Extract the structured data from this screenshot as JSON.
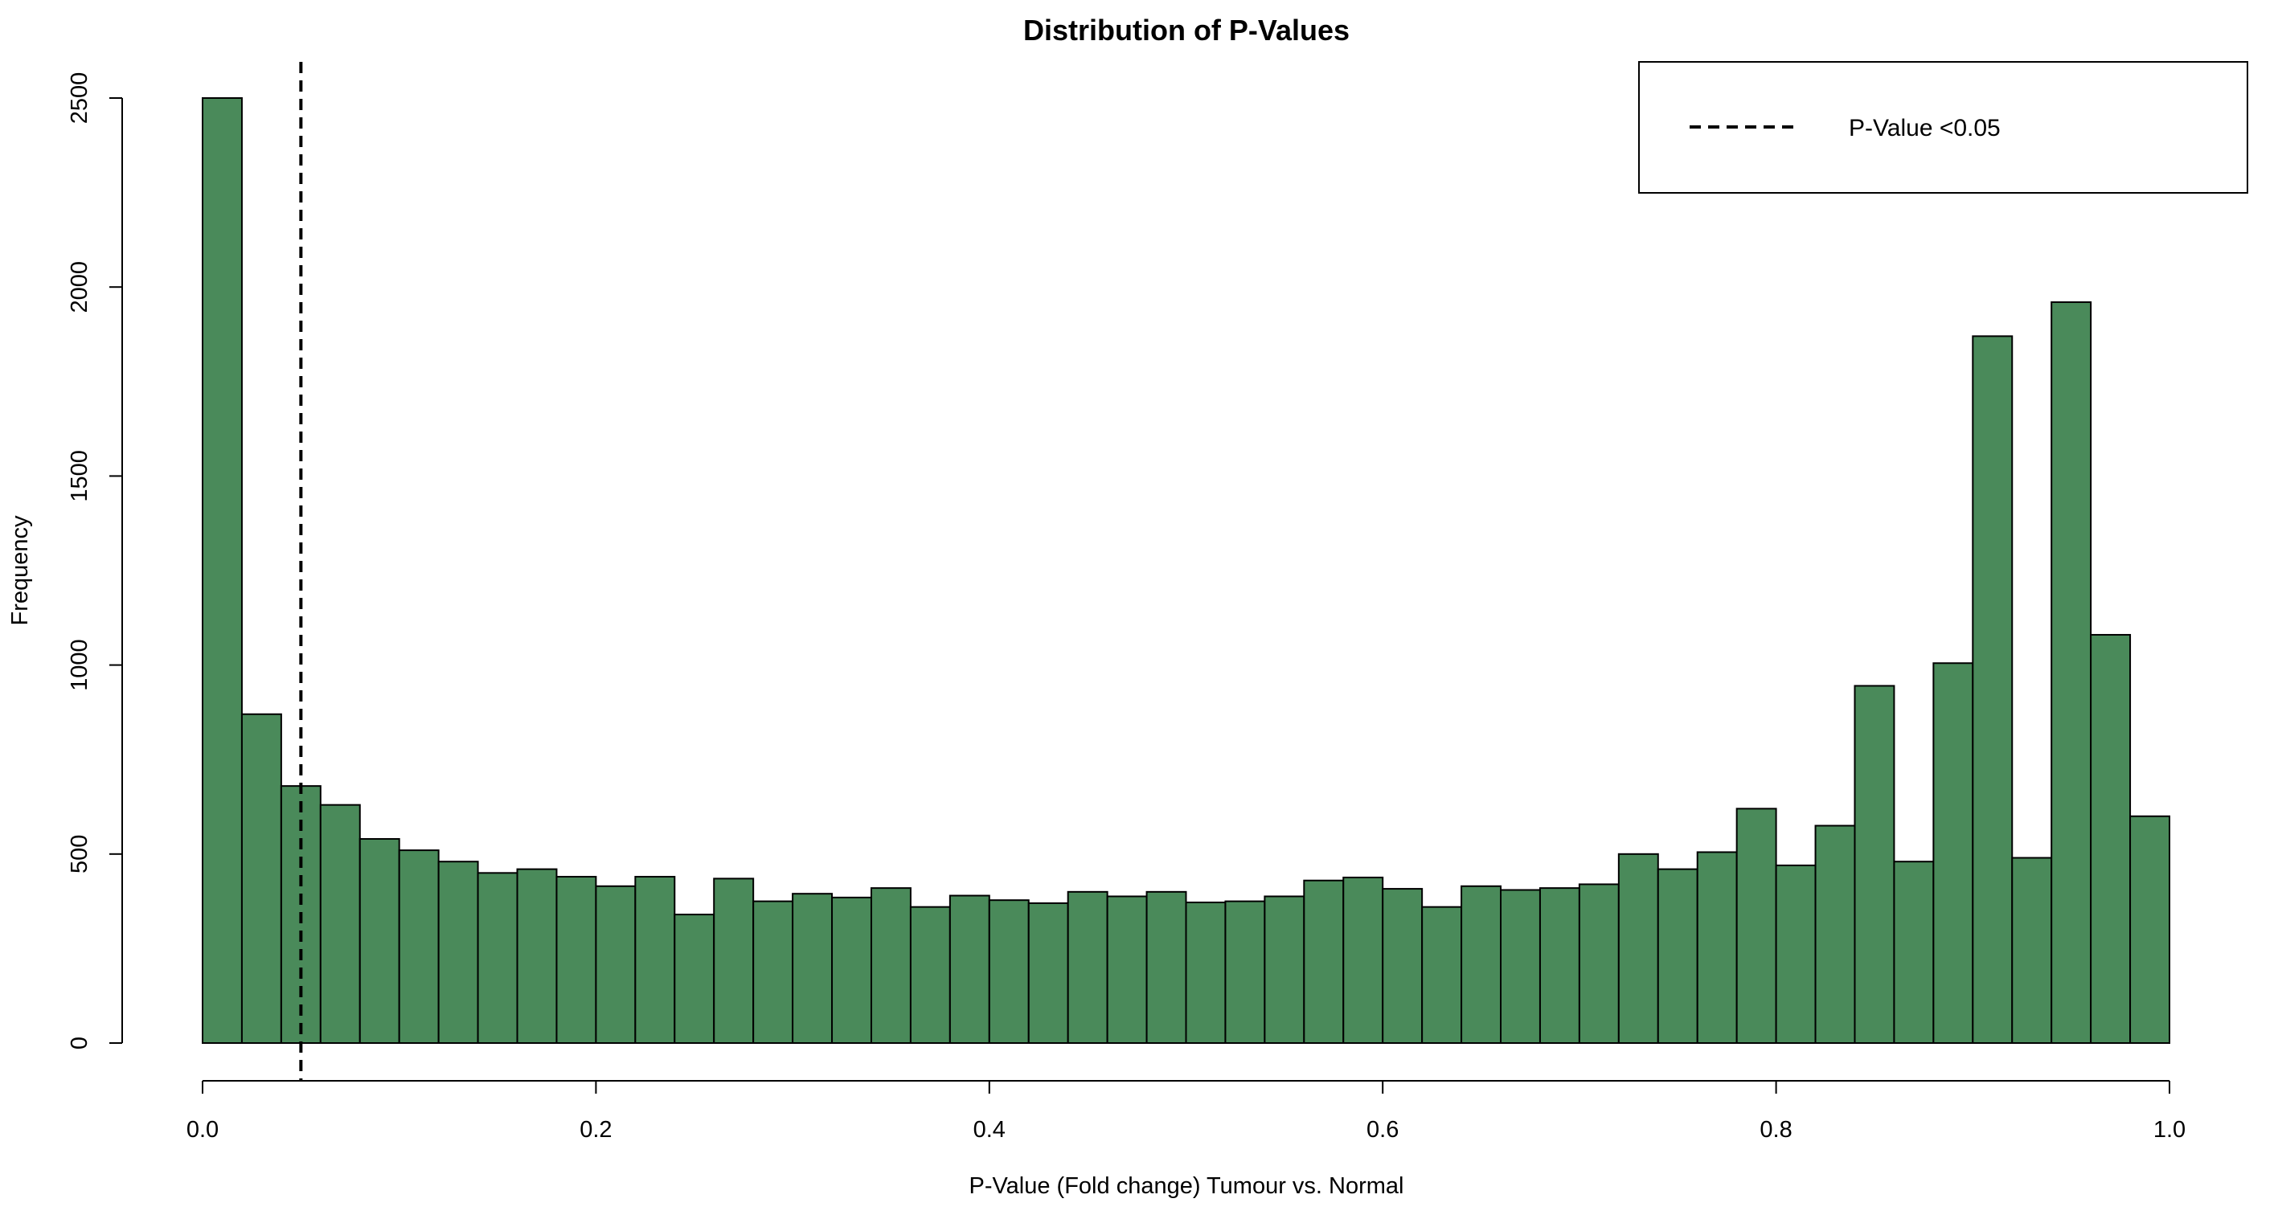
{
  "chart_data": {
    "type": "bar",
    "title": "Distribution of P-Values",
    "xlabel": "P-Value (Fold change) Tumour vs. Normal",
    "ylabel": "Frequency",
    "bin_width": 0.02,
    "bin_start": 0.0,
    "xlim": [
      0.0,
      1.0
    ],
    "ylim": [
      0,
      2600
    ],
    "x_ticks": [
      "0.0",
      "0.2",
      "0.4",
      "0.6",
      "0.8",
      "1.0"
    ],
    "y_ticks": [
      "0",
      "500",
      "1000",
      "1500",
      "2000",
      "2500"
    ],
    "values": [
      2500,
      870,
      680,
      630,
      540,
      510,
      480,
      450,
      460,
      440,
      415,
      440,
      340,
      435,
      375,
      395,
      385,
      410,
      360,
      390,
      378,
      370,
      400,
      388,
      400,
      372,
      375,
      388,
      430,
      438,
      408,
      360,
      415,
      405,
      410,
      420,
      500,
      460,
      505,
      620,
      470,
      575,
      945,
      480,
      1005,
      1870,
      490,
      1960,
      1080,
      600
    ],
    "bar_color": "#4a8a5a",
    "bar_edge_color": "#000000",
    "reference_line": {
      "x": 0.05,
      "style": "dashed",
      "label": "P-Value <0.05"
    },
    "legend": {
      "position": "top-right",
      "entries": [
        "P-Value <0.05"
      ]
    },
    "grid": false
  }
}
